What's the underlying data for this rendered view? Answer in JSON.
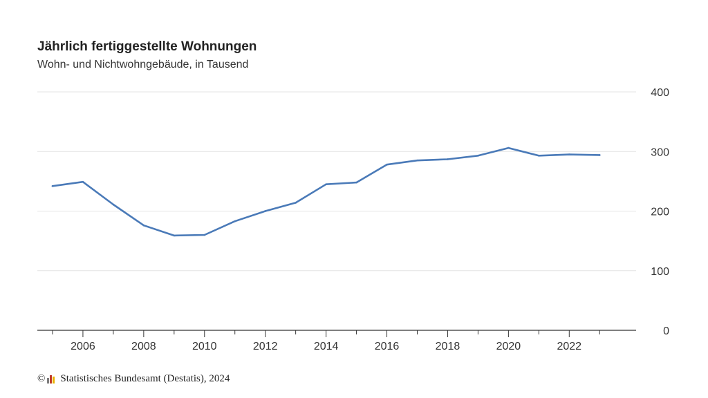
{
  "chart_data": {
    "type": "line",
    "title": "Jährlich fertiggestellte Wohnungen",
    "subtitle": "Wohn- und Nichtwohngebäude, in Tausend",
    "xlabel": "",
    "ylabel": "",
    "x": [
      2005,
      2006,
      2007,
      2008,
      2009,
      2010,
      2011,
      2012,
      2013,
      2014,
      2015,
      2016,
      2017,
      2018,
      2019,
      2020,
      2021,
      2022,
      2023
    ],
    "series": [
      {
        "values": [
          242,
          249,
          211,
          176,
          159,
          160,
          183,
          200,
          214,
          245,
          248,
          278,
          285,
          287,
          293,
          306,
          293,
          295,
          294
        ],
        "color": "#4a7ab8"
      }
    ],
    "xlim": [
      2004.5,
      2024.2
    ],
    "ylim": [
      0,
      400
    ],
    "yticks": [
      "0",
      "100",
      "200",
      "300",
      "400"
    ],
    "xticks": [
      "2006",
      "2008",
      "2010",
      "2012",
      "2014",
      "2016",
      "2018",
      "2020",
      "2022"
    ],
    "y_axis_position": "right",
    "grid": true
  },
  "footer": {
    "copyright_symbol": "©",
    "source": "Statistisches Bundesamt (Destatis), 2024"
  },
  "colors": {
    "line": "#4a7ab8",
    "grid": "#e3e3e3",
    "axis": "#333333",
    "logo": [
      "#7d7d7d",
      "#c0392b",
      "#e8b100"
    ]
  }
}
